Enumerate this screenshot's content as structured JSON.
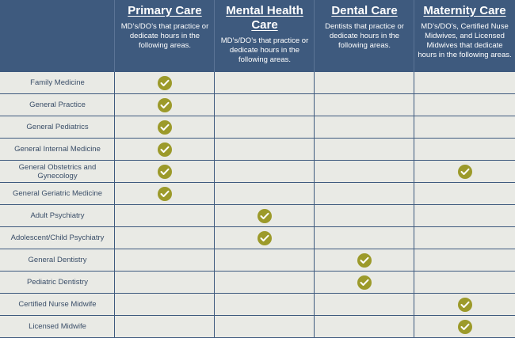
{
  "columns": [
    {
      "title": "Primary Care",
      "description": "MD’s/DO’s that practice or dedicate hours in the following areas."
    },
    {
      "title": "Mental Health Care",
      "description": "MD’s/DO’s that practice or dedicate hours in the following areas."
    },
    {
      "title": "Dental Care",
      "description": "Dentists that practice or dedicate hours in the following areas."
    },
    {
      "title": "Maternity Care",
      "description": "MD’s/DO’s, Certified Nuse Midwives, and Licensed Midwives that dedicate hours in the following areas."
    }
  ],
  "rows": [
    {
      "label": "Family Medicine",
      "checks": [
        true,
        false,
        false,
        false
      ]
    },
    {
      "label": "General Practice",
      "checks": [
        true,
        false,
        false,
        false
      ]
    },
    {
      "label": "General Pediatrics",
      "checks": [
        true,
        false,
        false,
        false
      ]
    },
    {
      "label": "General Internal Medicine",
      "checks": [
        true,
        false,
        false,
        false
      ]
    },
    {
      "label": "General Obstetrics and Gynecology",
      "checks": [
        true,
        false,
        false,
        true
      ]
    },
    {
      "label": "General Geriatric Medicine",
      "checks": [
        true,
        false,
        false,
        false
      ]
    },
    {
      "label": "Adult Psychiatry",
      "checks": [
        false,
        true,
        false,
        false
      ]
    },
    {
      "label": "Adolescent/Child Psychiatry",
      "checks": [
        false,
        true,
        false,
        false
      ]
    },
    {
      "label": "General Dentistry",
      "checks": [
        false,
        false,
        true,
        false
      ]
    },
    {
      "label": "Pediatric Dentistry",
      "checks": [
        false,
        false,
        true,
        false
      ]
    },
    {
      "label": "Certified Nurse Midwife",
      "checks": [
        false,
        false,
        false,
        true
      ]
    },
    {
      "label": "Licensed Midwife",
      "checks": [
        false,
        false,
        false,
        true
      ]
    }
  ],
  "colors": {
    "header": "#3e5a7e",
    "check": "#9c9a2a",
    "background": "#e9eae5"
  },
  "icons": {
    "check": "check-circle-icon"
  }
}
